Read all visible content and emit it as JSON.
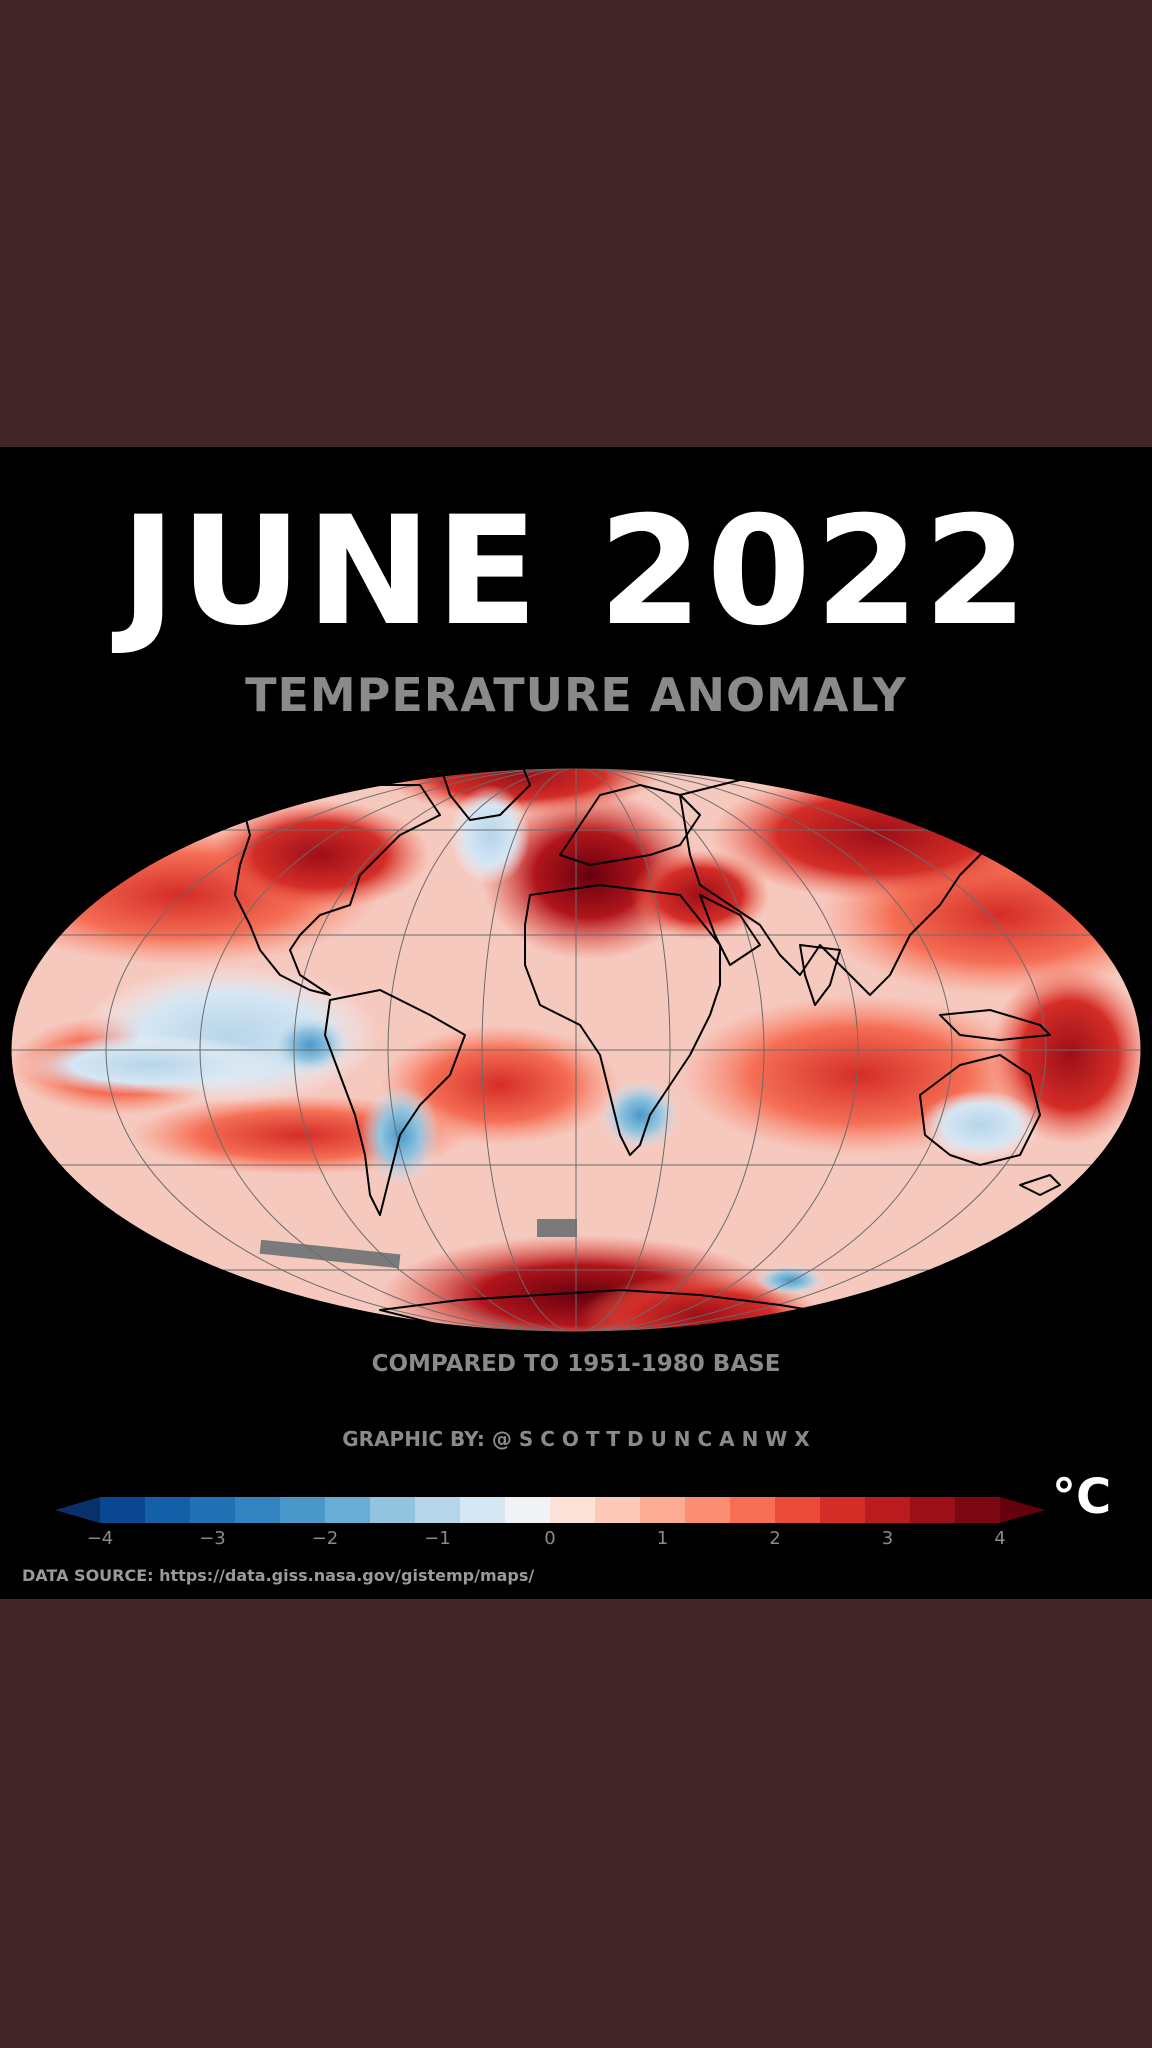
{
  "header": {
    "title": "JUNE 2022",
    "subtitle": "TEMPERATURE ANOMALY"
  },
  "map": {
    "projection": "mollweide",
    "ocean_background": "#f6c9bf",
    "land_outline_color": "#000000",
    "graticule_color": "#6b6b6b",
    "hotspots": [
      {
        "region": "north-africa-mediterranean",
        "anomaly": 4
      },
      {
        "region": "central-asia-russia",
        "anomaly": 3.5
      },
      {
        "region": "antarctica-west",
        "anomaly": 4
      },
      {
        "region": "north-america-west",
        "anomaly": 3
      },
      {
        "region": "arctic",
        "anomaly": 3
      },
      {
        "region": "middle-east",
        "anomaly": 3
      }
    ],
    "coldspots": [
      {
        "region": "eastern-pacific",
        "anomaly": -1
      },
      {
        "region": "south-america-south",
        "anomaly": -1.5
      },
      {
        "region": "southern-africa",
        "anomaly": -1
      },
      {
        "region": "peru-coast",
        "anomaly": -2
      }
    ]
  },
  "notes": {
    "baseline": "COMPARED TO 1951-1980 BASE",
    "credit": "GRAPHIC BY: @ S C O T T D U N C A N W X"
  },
  "colorbar": {
    "min": -4,
    "max": 4,
    "ticks": [
      "−4",
      "−3",
      "−2",
      "−1",
      "0",
      "1",
      "2",
      "3",
      "4"
    ],
    "unit": "°C",
    "colors": [
      "#08306b",
      "#0b4690",
      "#1460a8",
      "#2171b5",
      "#3283c0",
      "#4a98c9",
      "#6aaed6",
      "#92c4e0",
      "#b6d5ea",
      "#d6e6f3",
      "#f1f3f6",
      "#fde2da",
      "#fcc8b8",
      "#fcab95",
      "#fb8d72",
      "#f56e55",
      "#e94a39",
      "#d42d27",
      "#bb1a1e",
      "#9c0f18",
      "#7a0711",
      "#67000d"
    ]
  },
  "footer": {
    "source": "DATA SOURCE: https://data.giss.nasa.gov/gistemp/maps/"
  }
}
